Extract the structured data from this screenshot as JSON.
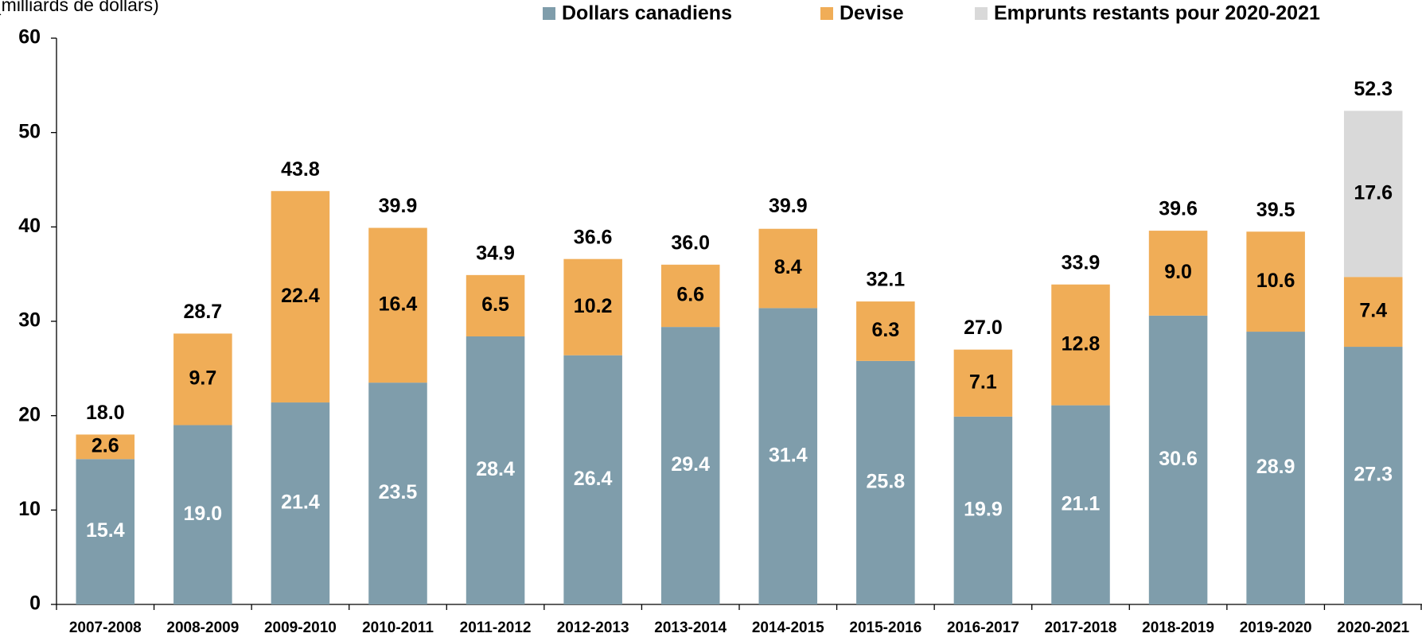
{
  "chart_data": {
    "type": "stacked_bar",
    "subtitle": "(milliards de dollars)",
    "categories": [
      "2007-2008",
      "2008-2009",
      "2009-2010",
      "2010-2011",
      "2011-2012",
      "2012-2013",
      "2013-2014",
      "2014-2015",
      "2015-2016",
      "2016-2017",
      "2017-2018",
      "2018-2019",
      "2019-2020",
      "2020-2021"
    ],
    "series": [
      {
        "name": "Dollars canadiens",
        "color": "#7f9dab",
        "label_color": "#ffffff",
        "values": [
          15.4,
          19.0,
          21.4,
          23.5,
          28.4,
          26.4,
          29.4,
          31.4,
          25.8,
          19.9,
          21.1,
          30.6,
          28.9,
          27.3
        ],
        "value_labels": [
          "15.4",
          "19.0",
          "21.4",
          "23.5",
          "28.4",
          "26.4",
          "29.4",
          "31.4",
          "25.8",
          "19.9",
          "21.1",
          "30.6",
          "28.9",
          "27.3"
        ]
      },
      {
        "name": "Devise",
        "color": "#f0ad57",
        "label_color": "#000000",
        "values": [
          2.6,
          9.7,
          22.4,
          16.4,
          6.5,
          10.2,
          6.6,
          8.4,
          6.3,
          7.1,
          12.8,
          9.0,
          10.6,
          7.4
        ],
        "value_labels": [
          "2.6",
          "9.7",
          "22.4",
          "16.4",
          "6.5",
          "10.2",
          "6.6",
          "8.4",
          "6.3",
          "7.1",
          "12.8",
          "9.0",
          "10.6",
          "7.4"
        ]
      },
      {
        "name": "Emprunts restants pour 2020-2021",
        "color": "#d9d9d9",
        "label_color": "#000000",
        "values": [
          null,
          null,
          null,
          null,
          null,
          null,
          null,
          null,
          null,
          null,
          null,
          null,
          null,
          17.6
        ],
        "value_labels": [
          null,
          null,
          null,
          null,
          null,
          null,
          null,
          null,
          null,
          null,
          null,
          null,
          null,
          "17.6"
        ]
      }
    ],
    "totals": [
      18.0,
      28.7,
      43.8,
      39.9,
      34.9,
      36.6,
      36.0,
      39.9,
      32.1,
      27.0,
      33.9,
      39.6,
      39.5,
      52.3
    ],
    "total_labels": [
      "18.0",
      "28.7",
      "43.8",
      "39.9",
      "34.9",
      "36.6",
      "36.0",
      "39.9",
      "32.1",
      "27.0",
      "33.9",
      "39.6",
      "39.5",
      "52.3"
    ],
    "ylim": [
      0,
      60
    ],
    "yticks": [
      0,
      10,
      20,
      30,
      40,
      50,
      60
    ],
    "grid": false,
    "legend": "top"
  }
}
